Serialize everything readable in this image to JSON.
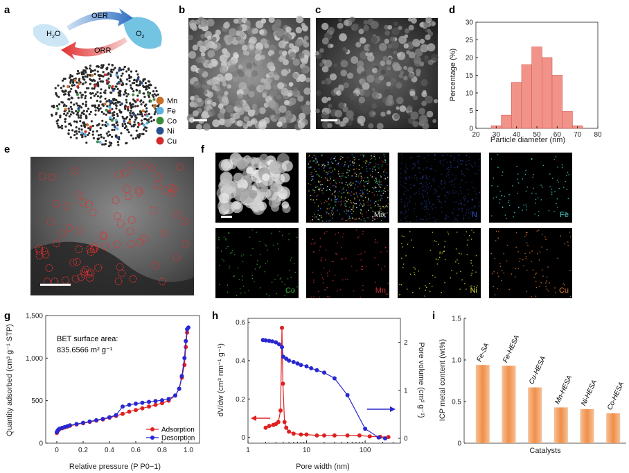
{
  "panel_letters": [
    "a",
    "b",
    "c",
    "d",
    "e",
    "f",
    "g",
    "h",
    "i"
  ],
  "panel_a": {
    "water_label": "H",
    "water_sub": "2",
    "water_tail": "O",
    "oxygen_label": "O",
    "oxygen_sub": "2",
    "oer_label": "OER",
    "orr_label": "ORR",
    "legend": [
      {
        "label": "Mn",
        "color": "#c8702a"
      },
      {
        "label": "Fe",
        "color": "#5ab3e0"
      },
      {
        "label": "Co",
        "color": "#3c8a3c"
      },
      {
        "label": "Ni",
        "color": "#2a4f8f"
      },
      {
        "label": "Cu",
        "color": "#d42a2a"
      }
    ]
  },
  "panel_f_labels": [
    {
      "label": "",
      "color": "#ffffff"
    },
    {
      "label": "Mix",
      "color": "#dddddd"
    },
    {
      "label": "N",
      "color": "#3355cc"
    },
    {
      "label": "Fe",
      "color": "#44cccc"
    },
    {
      "label": "Co",
      "color": "#33aa33"
    },
    {
      "label": "Mn",
      "color": "#cc3333"
    },
    {
      "label": "Ni",
      "color": "#dddd33"
    },
    {
      "label": "Cu",
      "color": "#e07a30"
    }
  ],
  "chart_data": [
    {
      "panel": "d",
      "type": "bar",
      "xlabel": "Particle diameter (nm)",
      "ylabel": "Percentage (%)",
      "xlim": [
        20,
        80
      ],
      "ylim": [
        0,
        30
      ],
      "xticks": [
        20,
        30,
        40,
        50,
        60,
        70,
        80
      ],
      "yticks": [
        0,
        5,
        10,
        15,
        20,
        25,
        30
      ],
      "bin_width": 5,
      "bins": [
        30,
        35,
        40,
        45,
        50,
        55,
        60,
        65,
        70
      ],
      "values": [
        0.7,
        3.7,
        13,
        18,
        23,
        20,
        15,
        4.8,
        0.7
      ],
      "color": "#f2938a"
    },
    {
      "panel": "g",
      "type": "line",
      "xlabel": "Relative pressure (P P0−1)",
      "ylabel": "Quantity adsorbed (cm³ g⁻¹ STP)",
      "xlim": [
        0,
        1.0
      ],
      "ylim": [
        0,
        1500
      ],
      "xticks": [
        "0",
        "0.2",
        "0.4",
        "0.6",
        "0.8",
        "1.0"
      ],
      "yticks": [
        "0",
        "500",
        "1,000",
        "1,500"
      ],
      "annotation_line1": "BET surface area:",
      "annotation_line2": "835.6566 m² g⁻¹",
      "legend": [
        "Adsorption",
        "Desorption"
      ],
      "series": [
        {
          "name": "Adsorption",
          "color": "#e02020",
          "x": [
            0.0,
            0.005,
            0.01,
            0.02,
            0.04,
            0.06,
            0.08,
            0.1,
            0.15,
            0.2,
            0.25,
            0.3,
            0.35,
            0.4,
            0.45,
            0.5,
            0.55,
            0.6,
            0.65,
            0.7,
            0.75,
            0.8,
            0.85,
            0.9,
            0.93,
            0.95,
            0.97,
            0.98,
            0.99
          ],
          "y": [
            120,
            140,
            150,
            165,
            175,
            185,
            195,
            205,
            220,
            235,
            250,
            265,
            280,
            300,
            320,
            345,
            370,
            390,
            410,
            430,
            450,
            470,
            500,
            560,
            640,
            770,
            920,
            1130,
            1300
          ]
        },
        {
          "name": "Desorption",
          "color": "#2828d0",
          "x": [
            0.0,
            0.005,
            0.01,
            0.02,
            0.04,
            0.06,
            0.08,
            0.1,
            0.15,
            0.2,
            0.25,
            0.3,
            0.35,
            0.4,
            0.45,
            0.5,
            0.55,
            0.6,
            0.65,
            0.7,
            0.75,
            0.8,
            0.85,
            0.9,
            0.93,
            0.95,
            0.97,
            0.98,
            0.99,
            1.0
          ],
          "y": [
            130,
            145,
            155,
            170,
            180,
            190,
            200,
            210,
            225,
            240,
            255,
            270,
            285,
            305,
            330,
            430,
            450,
            465,
            475,
            485,
            495,
            505,
            520,
            560,
            640,
            790,
            1000,
            1200,
            1340,
            1360
          ]
        }
      ]
    },
    {
      "panel": "h",
      "type": "line",
      "xlabel": "Pore width (nm)",
      "ylabel": "dV/dw (cm³ nm⁻¹ g⁻¹)",
      "y2label": "Pore volume (cm³ g⁻¹)",
      "xscale": "log",
      "xlim": [
        1,
        400
      ],
      "ylim": [
        -0.03,
        0.62
      ],
      "y2lim": [
        -0.1,
        2.5
      ],
      "xticks": [
        "1",
        "10",
        "100"
      ],
      "yticks": [
        "0",
        "0.2",
        "0.4",
        "0.6"
      ],
      "y2ticks": [
        "0",
        "1",
        "2"
      ],
      "series": [
        {
          "name": "",
          "axis": "left",
          "color": "#e02020",
          "x": [
            2.0,
            2.3,
            2.7,
            3.0,
            3.3,
            3.6,
            3.8,
            3.95,
            4.2,
            4.5,
            5,
            6,
            8,
            10,
            15,
            20,
            30,
            50,
            80,
            120,
            180,
            250
          ],
          "y": [
            0.05,
            0.06,
            0.065,
            0.07,
            0.08,
            0.14,
            0.57,
            0.28,
            0.08,
            0.05,
            0.03,
            0.02,
            0.015,
            0.015,
            0.01,
            0.01,
            0.01,
            0.01,
            0.01,
            0.005,
            0.003,
            0.002
          ]
        },
        {
          "name": "",
          "axis": "right",
          "color": "#2828d0",
          "x": [
            1.8,
            2.0,
            2.3,
            2.6,
            3.0,
            3.4,
            3.8,
            4.0,
            4.5,
            5,
            6,
            7,
            8,
            10,
            12,
            15,
            20,
            30,
            50,
            100,
            170,
            220
          ],
          "y": [
            2.05,
            2.04,
            2.03,
            2.02,
            2.0,
            1.96,
            1.9,
            1.7,
            1.66,
            1.62,
            1.59,
            1.56,
            1.53,
            1.5,
            1.46,
            1.42,
            1.37,
            1.25,
            0.9,
            0.2,
            0.02,
            0.0
          ]
        }
      ]
    },
    {
      "panel": "i",
      "type": "bar",
      "xlabel": "Catalysts",
      "ylabel": "ICP metal content (wt%)",
      "ylim": [
        0,
        1.5
      ],
      "yticks": [
        "0",
        "0.5",
        "1.0",
        "1.5"
      ],
      "categories": [
        "Fe-SA",
        "Fe-HESA",
        "Cu-HESA",
        "Mn-HESA",
        "Ni-HESA",
        "Co-HESA"
      ],
      "values": [
        0.94,
        0.93,
        0.67,
        0.43,
        0.41,
        0.36
      ],
      "color": "#f0a868"
    }
  ]
}
